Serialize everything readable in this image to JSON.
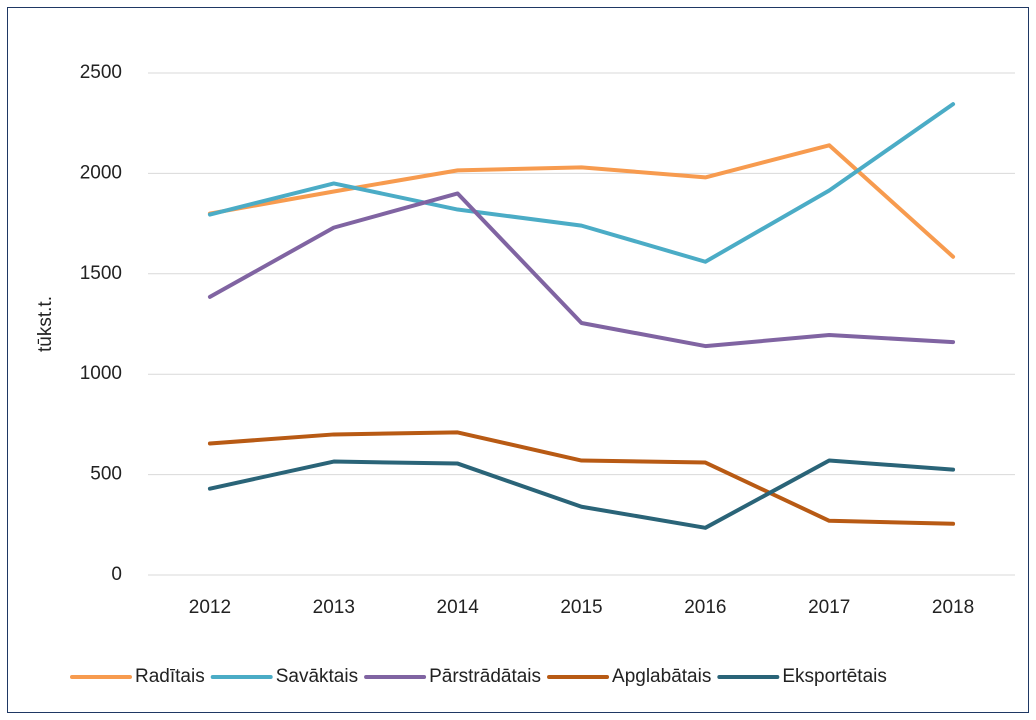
{
  "chart_data": {
    "type": "line",
    "y_label": "tūkst.t.",
    "categories": [
      "2012",
      "2013",
      "2014",
      "2015",
      "2016",
      "2017",
      "2018"
    ],
    "series": [
      {
        "name": "Radītais",
        "color": "#f79b4f",
        "values": [
          1800,
          1910,
          2015,
          2030,
          1980,
          2140,
          1585
        ]
      },
      {
        "name": "Savāktais",
        "color": "#4bacc6",
        "values": [
          1795,
          1950,
          1820,
          1740,
          1560,
          1915,
          2345
        ]
      },
      {
        "name": "Pārstrādātais",
        "color": "#8064a2",
        "values": [
          1385,
          1730,
          1900,
          1255,
          1140,
          1195,
          1160
        ]
      },
      {
        "name": "Apglabātais",
        "color": "#b85a14",
        "values": [
          655,
          700,
          710,
          570,
          560,
          270,
          255
        ]
      },
      {
        "name": "Eksportētais",
        "color": "#2a6478",
        "values": [
          430,
          565,
          555,
          340,
          235,
          570,
          525
        ]
      }
    ],
    "ylim": [
      0,
      2500
    ],
    "yticks": [
      0,
      500,
      1000,
      1500,
      2000,
      2500
    ],
    "grid": true,
    "legend": "bottom"
  }
}
